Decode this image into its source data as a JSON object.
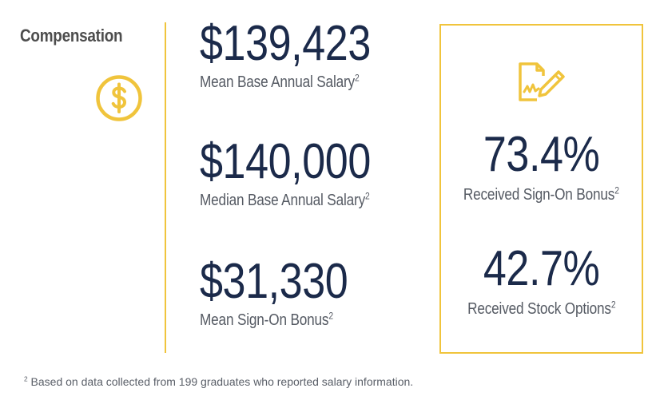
{
  "section": {
    "title": "Compensation",
    "icon": "dollar-circle-icon",
    "accent_color": "#f0c43c"
  },
  "stats": [
    {
      "value": "$139,423",
      "label": "Mean Base Annual Salary",
      "footnote_ref": "2"
    },
    {
      "value": "$140,000",
      "label": "Median Base Annual Salary",
      "footnote_ref": "2"
    },
    {
      "value": "$31,330",
      "label": "Mean Sign-On Bonus",
      "footnote_ref": "2"
    }
  ],
  "box": {
    "icon": "signed-document-icon",
    "stats": [
      {
        "value": "73.4%",
        "label": "Received Sign-On Bonus",
        "footnote_ref": "2"
      },
      {
        "value": "42.7%",
        "label": "Received Stock Options",
        "footnote_ref": "2"
      }
    ]
  },
  "footnote": {
    "marker": "2",
    "text": " Based on data collected from 199 graduates who reported salary information."
  },
  "colors": {
    "value_text": "#1b2a4a",
    "label_text": "#555a63",
    "accent": "#f0c43c"
  }
}
